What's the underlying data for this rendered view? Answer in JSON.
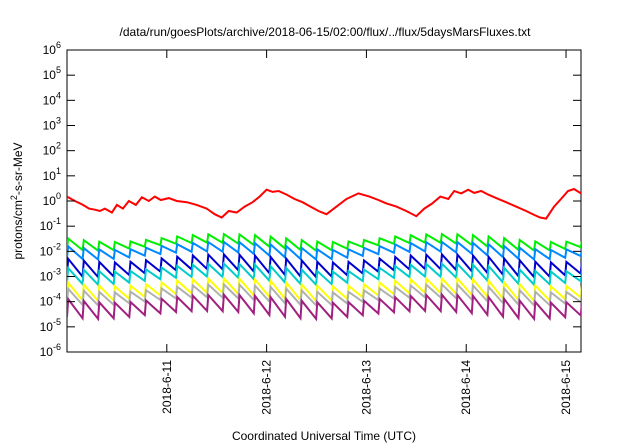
{
  "chart_data": {
    "type": "line",
    "title": "/data/run/goesPlots/archive/2018-06-15/02:00/flux/../flux/5daysMarsFluxes.txt",
    "xlabel": "Coordinated Universal Time (UTC)",
    "ylabel_main": "protons/cm",
    "ylabel_sup": "2",
    "ylabel_tail": "-s-sr-MeV",
    "y_scale": "log",
    "ylim": [
      1e-06,
      1000000.0
    ],
    "y_ticks": [
      {
        "exp": -6,
        "label": "10",
        "sup": "-6"
      },
      {
        "exp": -5,
        "label": "10",
        "sup": "-5"
      },
      {
        "exp": -4,
        "label": "10",
        "sup": "-4"
      },
      {
        "exp": -3,
        "label": "10",
        "sup": "-3"
      },
      {
        "exp": -2,
        "label": "10",
        "sup": "-2"
      },
      {
        "exp": -1,
        "label": "10",
        "sup": "-1"
      },
      {
        "exp": 0,
        "label": "10",
        "sup": "0"
      },
      {
        "exp": 1,
        "label": "10",
        "sup": "1"
      },
      {
        "exp": 2,
        "label": "10",
        "sup": "2"
      },
      {
        "exp": 3,
        "label": "10",
        "sup": "3"
      },
      {
        "exp": 4,
        "label": "10",
        "sup": "4"
      },
      {
        "exp": 5,
        "label": "10",
        "sup": "5"
      },
      {
        "exp": 6,
        "label": "10",
        "sup": "6"
      }
    ],
    "xlim": [
      10.0,
      15.15
    ],
    "x_ticks": [
      {
        "x": 11.0,
        "label": "2018-6-11"
      },
      {
        "x": 12.0,
        "label": "2018-6-12"
      },
      {
        "x": 13.0,
        "label": "2018-6-13"
      },
      {
        "x": 14.0,
        "label": "2018-6-14"
      },
      {
        "x": 15.0,
        "label": "2018-6-15"
      }
    ],
    "grid": false,
    "legend": "none",
    "series": [
      {
        "color": "#ff0000",
        "x": [
          10.0,
          10.08,
          10.16,
          10.22,
          10.28,
          10.33,
          10.38,
          10.45,
          10.5,
          10.56,
          10.62,
          10.69,
          10.75,
          10.82,
          10.88,
          10.94,
          11.02,
          11.1,
          11.2,
          11.3,
          11.4,
          11.48,
          11.55,
          11.62,
          11.7,
          11.78,
          11.86,
          11.93,
          12.0,
          12.06,
          12.12,
          12.2,
          12.28,
          12.36,
          12.44,
          12.52,
          12.6,
          12.7,
          12.8,
          12.92,
          13.03,
          13.12,
          13.2,
          13.3,
          13.4,
          13.5,
          13.58,
          13.66,
          13.74,
          13.82,
          13.88,
          13.95,
          14.02,
          14.08,
          14.15,
          14.22,
          14.3,
          14.4,
          14.5,
          14.6,
          14.68,
          14.74,
          14.8,
          14.88,
          14.95,
          15.02,
          15.08,
          15.15
        ],
        "y": [
          1.5,
          1.0,
          0.7,
          0.5,
          0.45,
          0.4,
          0.5,
          0.35,
          0.7,
          0.5,
          1.0,
          0.7,
          1.4,
          1.0,
          1.5,
          1.1,
          1.3,
          1.0,
          0.9,
          0.7,
          0.5,
          0.3,
          0.22,
          0.4,
          0.35,
          0.6,
          0.9,
          1.5,
          2.8,
          2.3,
          2.5,
          1.8,
          1.2,
          0.9,
          0.6,
          0.4,
          0.3,
          0.6,
          1.2,
          2.0,
          1.5,
          1.1,
          0.8,
          0.6,
          0.4,
          0.25,
          0.5,
          0.8,
          1.5,
          1.2,
          2.5,
          2.0,
          2.8,
          2.1,
          2.5,
          1.8,
          1.3,
          0.9,
          0.6,
          0.4,
          0.28,
          0.22,
          0.2,
          0.6,
          1.2,
          2.5,
          3.0,
          2.0
        ]
      },
      {
        "color": "#00ee00",
        "base": 0.018,
        "amp": 2.0
      },
      {
        "color": "#0088ff",
        "base": 0.008,
        "amp": 2.2
      },
      {
        "color": "#0000cc",
        "base": 0.0016,
        "amp": 3.5
      },
      {
        "color": "#00cccc",
        "base": 0.0008,
        "amp": 3.0
      },
      {
        "color": "#ffff00",
        "base": 0.00018,
        "amp": 3.5
      },
      {
        "color": "#b0b0b0",
        "base": 0.00012,
        "amp": 3.0
      },
      {
        "color": "#a02080",
        "base": 3.5e-05,
        "amp": 4.0
      }
    ]
  }
}
